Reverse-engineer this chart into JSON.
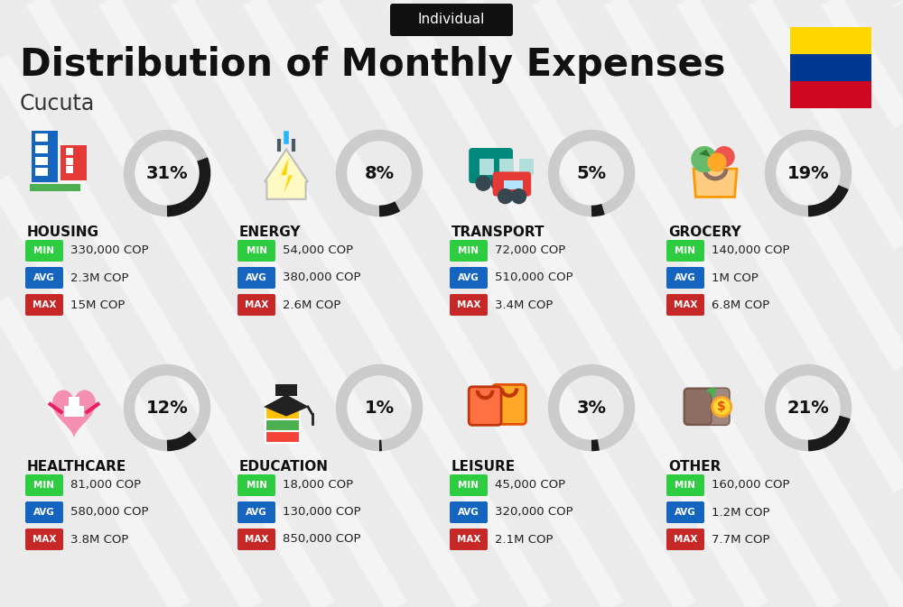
{
  "title": "Distribution of Monthly Expenses",
  "subtitle": "Individual",
  "city": "Cucuta",
  "bg_color": "#ebebeb",
  "categories": [
    {
      "name": "HOUSING",
      "pct": 31,
      "min": "330,000 COP",
      "avg": "2.3M COP",
      "max": "15M COP",
      "col": 0,
      "row": 0
    },
    {
      "name": "ENERGY",
      "pct": 8,
      "min": "54,000 COP",
      "avg": "380,000 COP",
      "max": "2.6M COP",
      "col": 1,
      "row": 0
    },
    {
      "name": "TRANSPORT",
      "pct": 5,
      "min": "72,000 COP",
      "avg": "510,000 COP",
      "max": "3.4M COP",
      "col": 2,
      "row": 0
    },
    {
      "name": "GROCERY",
      "pct": 19,
      "min": "140,000 COP",
      "avg": "1M COP",
      "max": "6.8M COP",
      "col": 3,
      "row": 0
    },
    {
      "name": "HEALTHCARE",
      "pct": 12,
      "min": "81,000 COP",
      "avg": "580,000 COP",
      "max": "3.8M COP",
      "col": 0,
      "row": 1
    },
    {
      "name": "EDUCATION",
      "pct": 1,
      "min": "18,000 COP",
      "avg": "130,000 COP",
      "max": "850,000 COP",
      "col": 1,
      "row": 1
    },
    {
      "name": "LEISURE",
      "pct": 3,
      "min": "45,000 COP",
      "avg": "320,000 COP",
      "max": "2.1M COP",
      "col": 2,
      "row": 1
    },
    {
      "name": "OTHER",
      "pct": 21,
      "min": "160,000 COP",
      "avg": "1.2M COP",
      "max": "7.7M COP",
      "col": 3,
      "row": 1
    }
  ],
  "min_color": "#2ecc40",
  "avg_color": "#1565C0",
  "max_color": "#C62828",
  "colombia_colors": [
    "#FFD700",
    "#003893",
    "#CF0821"
  ],
  "arc_color_filled": "#1a1a1a",
  "arc_color_empty": "#cccccc",
  "stripe_color": "#ffffff",
  "stripe_alpha": 0.45
}
